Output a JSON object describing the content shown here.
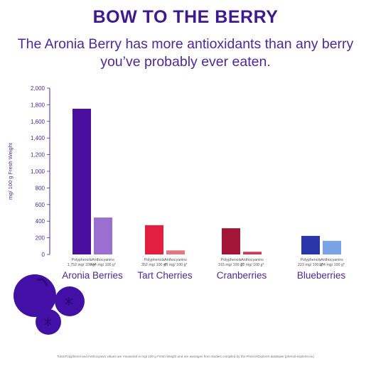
{
  "header": {
    "title": "BOW TO THE BERRY",
    "subtitle_line1": "The Aronia Berry has more antioxidants than any berry",
    "subtitle_line2": "you’ve probably ever eaten."
  },
  "footnote": "Total Polyphenol and Anthocyanin values are measured in mg/ 100 g Fresh Weight and are averages from studies compiled by the Phenol-Explorer database (phenol-explorer.eu)",
  "chart_data": {
    "type": "bar",
    "ylabel": "mg/ 100 g Fresh Weight",
    "ylim": [
      0,
      2000
    ],
    "yticks": [
      0,
      200,
      400,
      600,
      800,
      1000,
      1200,
      1400,
      1600,
      1800,
      2000
    ],
    "ytick_labels": [
      "0",
      "200",
      "400",
      "600",
      "800",
      "1,000",
      "1,200",
      "1,400",
      "1,600",
      "1,800",
      "2,000"
    ],
    "grid": false,
    "groups": [
      {
        "name": "Aronia Berries",
        "bars": [
          {
            "series": "Polyphenols",
            "value": 1752,
            "label": "1,752 mg/ 100 g*",
            "color": "#4b0fa0"
          },
          {
            "series": "Anthocyanins",
            "value": 444,
            "label": "444 mg/ 100 g*",
            "color": "#9a6fcf"
          }
        ]
      },
      {
        "name": "Tart Cherries",
        "bars": [
          {
            "series": "Polyphenols",
            "value": 352,
            "label": "352 mg/ 100 g*",
            "color": "#e11f3f"
          },
          {
            "series": "Anthocyanins",
            "value": 49,
            "label": "49 mg/ 100 g*",
            "color": "#e07a82"
          }
        ]
      },
      {
        "name": "Cranberries",
        "bars": [
          {
            "series": "Polyphenols",
            "value": 315,
            "label": "315 mg/ 100 g*",
            "color": "#a3163a"
          },
          {
            "series": "Anthocyanins",
            "value": 32,
            "label": "32 mg/ 100 g*",
            "color": "#cc3a55"
          }
        ]
      },
      {
        "name": "Blueberries",
        "bars": [
          {
            "series": "Polyphenols",
            "value": 223,
            "label": "223 mg/ 100 g*",
            "color": "#2a35a8"
          },
          {
            "series": "Anthocyanins",
            "value": 164,
            "label": "164 mg/ 100 g*",
            "color": "#7aa3e6"
          }
        ]
      }
    ]
  },
  "colors": {
    "title": "#3f1a8e",
    "axis": "#4b2a96",
    "berry": "#4210a6"
  }
}
